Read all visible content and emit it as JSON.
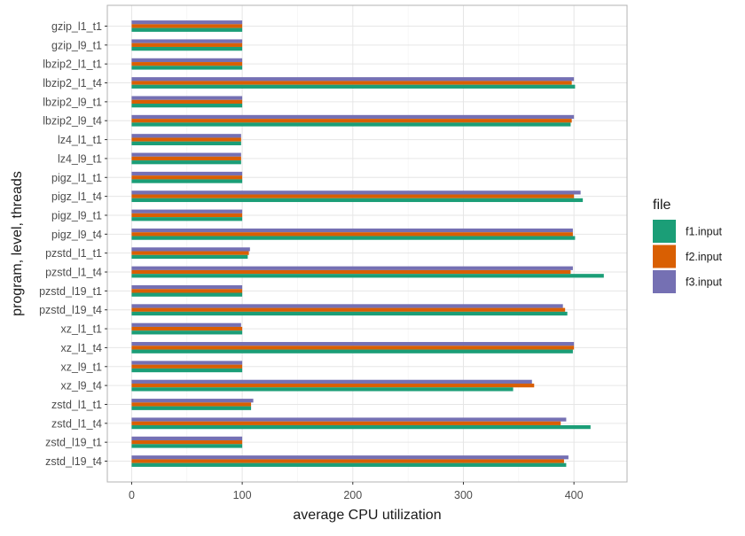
{
  "chart_data": {
    "type": "bar",
    "orientation": "horizontal",
    "xlabel": "average CPU utilization",
    "ylabel": "program, level, threads",
    "xlim": [
      -22,
      448
    ],
    "xticks": [
      0,
      100,
      200,
      300,
      400
    ],
    "grid": true,
    "legend_title": "file",
    "legend_position": "right",
    "categories": [
      "gzip_l1_t1",
      "gzip_l9_t1",
      "lbzip2_l1_t1",
      "lbzip2_l1_t4",
      "lbzip2_l9_t1",
      "lbzip2_l9_t4",
      "lz4_l1_t1",
      "lz4_l9_t1",
      "pigz_l1_t1",
      "pigz_l1_t4",
      "pigz_l9_t1",
      "pigz_l9_t4",
      "pzstd_l1_t1",
      "pzstd_l1_t4",
      "pzstd_l19_t1",
      "pzstd_l19_t4",
      "xz_l1_t1",
      "xz_l1_t4",
      "xz_l9_t1",
      "xz_l9_t4",
      "zstd_l1_t1",
      "zstd_l1_t4",
      "zstd_l19_t1",
      "zstd_l19_t4"
    ],
    "series": [
      {
        "name": "f1.input",
        "color": "#1b9e77",
        "values": [
          100,
          100,
          100,
          401,
          100,
          397,
          99,
          99,
          100,
          408,
          100,
          401,
          105,
          427,
          100,
          394,
          100,
          399,
          100,
          345,
          108,
          415,
          100,
          393
        ]
      },
      {
        "name": "f2.input",
        "color": "#d95f02",
        "values": [
          100,
          100,
          100,
          398,
          100,
          398,
          99,
          99,
          100,
          400,
          100,
          399,
          106,
          397,
          100,
          392,
          100,
          400,
          100,
          364,
          108,
          388,
          100,
          391
        ]
      },
      {
        "name": "f3.input",
        "color": "#7570b3",
        "values": [
          100,
          100,
          100,
          400,
          100,
          400,
          99,
          99,
          100,
          406,
          100,
          399,
          107,
          399,
          100,
          390,
          99,
          400,
          100,
          362,
          110,
          393,
          100,
          395
        ]
      }
    ]
  }
}
